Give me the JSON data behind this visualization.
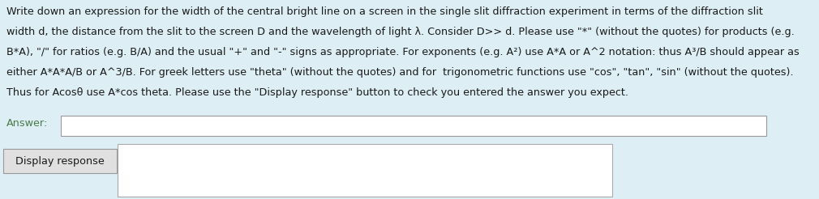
{
  "background_color": "#ddeef5",
  "text_color": "#1a1a1a",
  "text_fontsize": 9.2,
  "fig_width": 10.1,
  "fig_height": 2.46,
  "dpi": 100,
  "main_text_lines": [
    "Write down an expression for the width of the central bright line on a screen in the single slit diffraction experiment in terms of the diffraction slit",
    "width d, the distance from the slit to the screen D and the wavelength of light λ. Consider D>> d. Please use \"*\" (without the quotes) for products (e.g.",
    "B*A), \"/\" for ratios (e.g. B/A) and the usual \"+\" and \"-\" signs as appropriate. For exponents (e.g. A²) use A*A or A^2 notation: thus A³/B should appear as",
    "either A*A*A/B or A^3/B. For greek letters use \"theta\" (without the quotes) and for  trigonometric functions use \"cos\", \"tan\", \"sin\" (without the quotes).",
    "Thus for Acosθ use A*cos theta. Please use the \"Display response\" button to check you entered the answer you expect."
  ],
  "answer_label": "Answer:",
  "answer_label_color": "#4a7a4a",
  "button_label": "Display response",
  "button_text_color": "#1a1a1a"
}
